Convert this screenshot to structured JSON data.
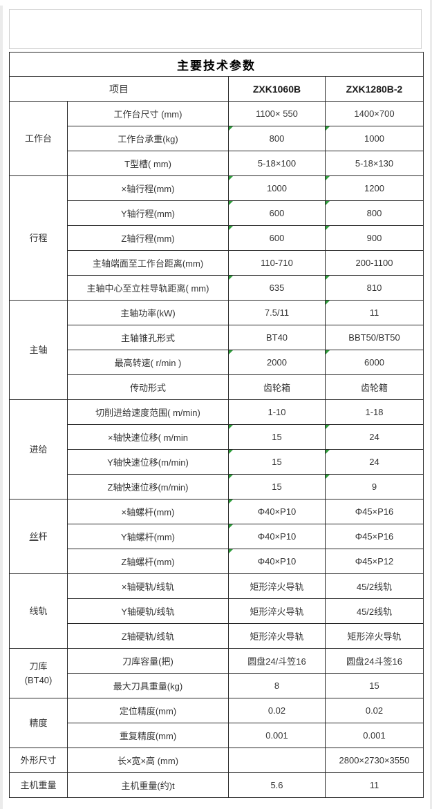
{
  "colors": {
    "table_border": "#262626",
    "text": "#333333",
    "title_text": "#000000",
    "box_border": "#cfcfcf",
    "flag_green": "#2f9e3c",
    "edge_gray": "#ebebeb"
  },
  "title": "主要技术参数",
  "header": {
    "item": "项目",
    "model1": "ZXK1060B",
    "model2": "ZXK1280B-2"
  },
  "groups": [
    {
      "label": "工作台",
      "rows": [
        {
          "item": "工作台尺寸 (mm)",
          "v1": "1100× 550",
          "v2": "1400×700",
          "f1": false,
          "f2": false
        },
        {
          "item": "工作台承重(kg)",
          "v1": "800",
          "v2": "1000",
          "f1": true,
          "f2": true
        },
        {
          "item": "T型槽( mm)",
          "v1": "5-18×100",
          "v2": "5-18×130",
          "f1": false,
          "f2": false
        }
      ]
    },
    {
      "label": "行程",
      "rows": [
        {
          "item": "×轴行程(mm)",
          "v1": "1000",
          "v2": "1200",
          "f1": true,
          "f2": true
        },
        {
          "item": "Y轴行程(mm)",
          "v1": "600",
          "v2": "800",
          "f1": true,
          "f2": true
        },
        {
          "item": "Z轴行程(mm)",
          "v1": "600",
          "v2": "900",
          "f1": true,
          "f2": true
        },
        {
          "item": "主轴端面至工作台距离(mm)",
          "v1": "110-710",
          "v2": "200-1100",
          "f1": false,
          "f2": false
        },
        {
          "item": "主轴中心至立柱导轨距离( mm)",
          "v1": "635",
          "v2": "810",
          "f1": true,
          "f2": true
        }
      ]
    },
    {
      "label": "主轴",
      "rows": [
        {
          "item": "主轴功率(kW)",
          "v1": "7.5/11",
          "v2": "11",
          "f1": false,
          "f2": true
        },
        {
          "item": "主轴锥孔形式",
          "v1": "BT40",
          "v2": "BBT50/BT50",
          "f1": false,
          "f2": false
        },
        {
          "item": "最高转速( r/min )",
          "v1": "2000",
          "v2": "6000",
          "f1": true,
          "f2": true
        },
        {
          "item": "传动形式",
          "v1": "齿轮箱",
          "v2": "齿轮籍",
          "f1": false,
          "f2": false
        }
      ]
    },
    {
      "label": "进给",
      "rows": [
        {
          "item": "切削进给速度范围( m/min)",
          "v1": "1-10",
          "v2": "1-18",
          "f1": false,
          "f2": false
        },
        {
          "item": "×轴快速位移( m/min",
          "v1": "15",
          "v2": "24",
          "f1": true,
          "f2": true
        },
        {
          "item": "Y轴快速位移(m/min)",
          "v1": "15",
          "v2": "24",
          "f1": true,
          "f2": true
        },
        {
          "item": "Z轴快速位移(m/min)",
          "v1": "15",
          "v2": "9",
          "f1": true,
          "f2": true
        }
      ]
    },
    {
      "label": "丝杆",
      "underline_first": true,
      "rows": [
        {
          "item": "×轴螺杆(mm)",
          "v1": "Φ40×P10",
          "v2": "Φ45×P16",
          "f1": true,
          "f2": false
        },
        {
          "item": "Y轴螺杆(mm)",
          "v1": "Φ40×P10",
          "v2": "Φ45×P16",
          "f1": true,
          "f2": false
        },
        {
          "item": "Z轴螺杆(mm)",
          "v1": "Φ40×P10",
          "v2": "Φ45×P12",
          "f1": true,
          "f2": false
        }
      ]
    },
    {
      "label": "线轨",
      "rows": [
        {
          "item": "×轴硬轨/线轨",
          "v1": "矩形淬火导轨",
          "v2": "45/2线轨",
          "f1": false,
          "f2": false
        },
        {
          "item": "Y轴硬轨/线轨",
          "v1": "矩形淬火导轨",
          "v2": "45/2线轨",
          "f1": false,
          "f2": false
        },
        {
          "item": "Z轴硬轨/线轨",
          "v1": "矩形淬火导轨",
          "v2": "矩形淬火导轨",
          "f1": false,
          "f2": false
        }
      ]
    },
    {
      "label": "刀库\n(BT40)",
      "rows": [
        {
          "item": "刀库容量(把)",
          "v1": "圆盘24/斗笠16",
          "v2": "圆盘24斗签16",
          "f1": false,
          "f2": false
        },
        {
          "item": "最大刀具重量(kg)",
          "v1": "8",
          "v2": "15",
          "f1": false,
          "f2": false
        }
      ]
    },
    {
      "label": "精度",
      "rows": [
        {
          "item": "定位精度(mm)",
          "v1": "0.02",
          "v2": "0.02",
          "f1": false,
          "f2": false
        },
        {
          "item": "重复精度(mm)",
          "v1": "0.001",
          "v2": "0.001",
          "f1": false,
          "f2": false
        }
      ]
    },
    {
      "label": "外形尺寸",
      "rows": [
        {
          "item": "长×宽×高 (mm)",
          "v1": "",
          "v2": "2800×2730×3550",
          "f1": false,
          "f2": false
        }
      ]
    },
    {
      "label": "主机重量",
      "rows": [
        {
          "item": "主机重量(约)t",
          "v1": "5.6",
          "v2": "11",
          "f1": false,
          "f2": false
        }
      ]
    }
  ]
}
